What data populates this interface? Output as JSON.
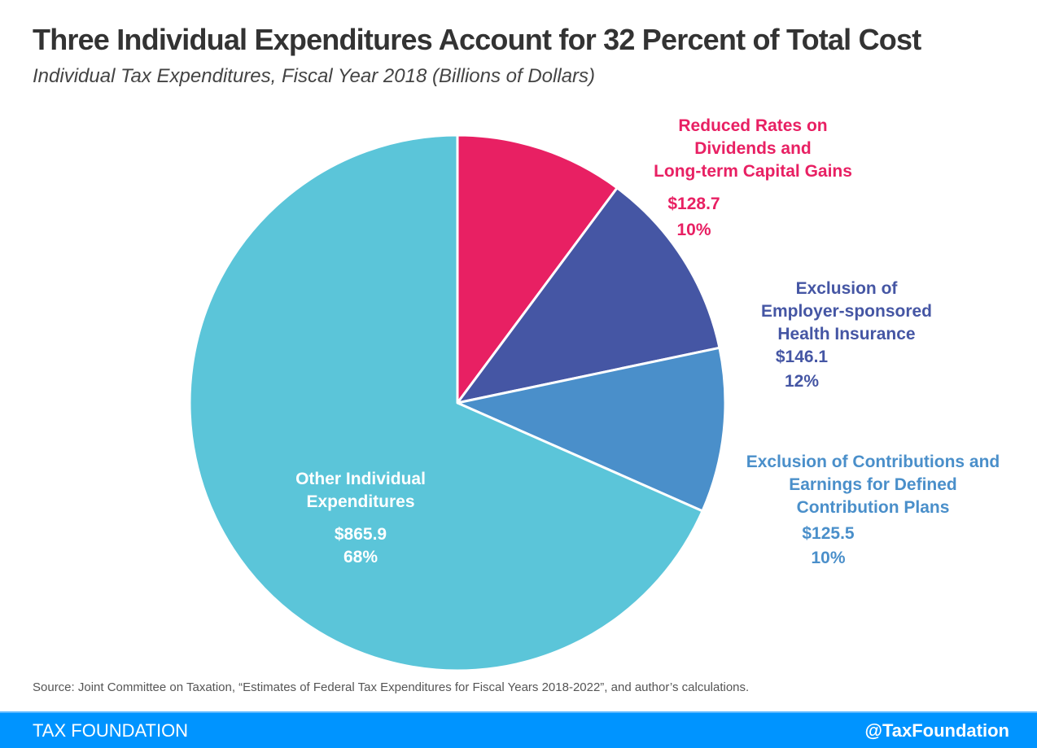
{
  "chart_data": {
    "type": "pie",
    "title": "Three Individual Expenditures Account for 32 Percent of Total Cost",
    "subtitle": "Individual Tax Expenditures, Fiscal Year 2018 (Billions of Dollars)",
    "slices": [
      {
        "label": "Reduced Rates on Dividends and Long-term Capital Gains",
        "lines": [
          "Reduced Rates on",
          "Dividends and",
          "Long-term Capital Gains"
        ],
        "value": 128.7,
        "value_label": "$128.7",
        "percent_label": "10%",
        "color": "#e82063"
      },
      {
        "label": "Exclusion of Employer-sponsored Health Insurance",
        "lines": [
          "Exclusion of",
          "Employer-sponsored",
          "Health Insurance"
        ],
        "value": 146.1,
        "value_label": "$146.1",
        "percent_label": "12%",
        "color": "#4556a4"
      },
      {
        "label": "Exclusion of Contributions and Earnings for Defined Contribution Plans",
        "lines": [
          "Exclusion of Contributions and",
          "Earnings for Defined",
          "Contribution Plans"
        ],
        "value": 125.5,
        "value_label": "$125.5",
        "percent_label": "10%",
        "color": "#4a8fca"
      },
      {
        "label": "Other Individual Expenditures",
        "lines": [
          "Other Individual",
          "Expenditures"
        ],
        "value": 865.9,
        "value_label": "$865.9",
        "percent_label": "68%",
        "color": "#5bc5d9"
      }
    ],
    "start_angle": "12 o'clock",
    "direction": "clockwise"
  },
  "source": "Source: Joint Committee on Taxation, “Estimates of Federal Tax Expenditures for Fiscal Years 2018-2022”, and author’s calculations.",
  "footer": {
    "brand": "TAX FOUNDATION",
    "handle": "@TaxFoundation"
  }
}
